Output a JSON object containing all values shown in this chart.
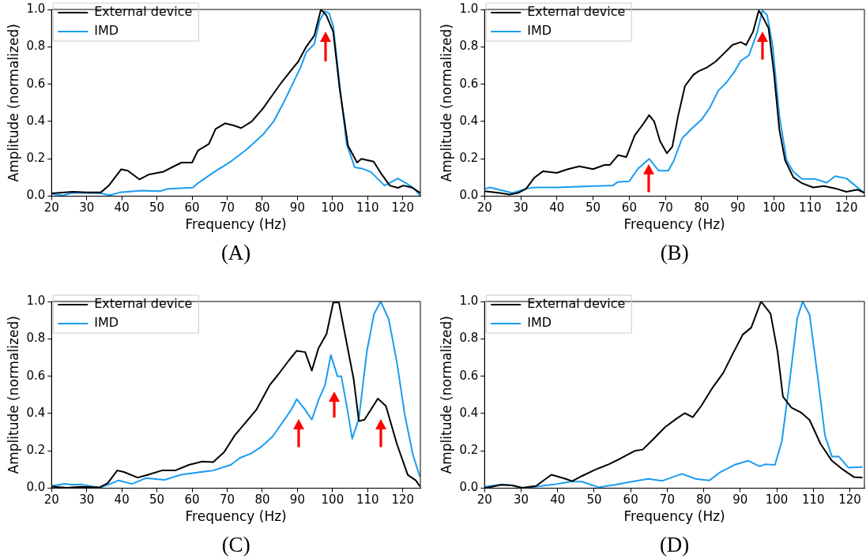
{
  "chart_data": [
    {
      "type": "line",
      "xlabel": "Frequency (Hz)",
      "ylabel": "Amplitude (normalized)",
      "annotations": [
        "(A)"
      ],
      "xlim": [
        20,
        125
      ],
      "ylim": [
        0,
        1
      ],
      "xticks": [
        20,
        30,
        40,
        50,
        60,
        70,
        80,
        90,
        100,
        110,
        120
      ],
      "yticks": [
        {
          "value": 0,
          "label": "0.0"
        },
        {
          "value": 0.2,
          "label": "0.2"
        },
        {
          "value": 0.4,
          "label": "0.4"
        },
        {
          "value": 0.6,
          "label": "0.6"
        },
        {
          "value": 0.8,
          "label": "0.8"
        },
        {
          "value": 1,
          "label": "1.0"
        }
      ],
      "grid": false,
      "legend": "top left",
      "marker": "none",
      "line_style": "solid",
      "series": [
        {
          "name": "External device",
          "color": "#000000",
          "x": [
            20,
            26,
            30,
            34,
            36.3,
            39.8,
            41.7,
            45,
            47.8,
            51.7,
            54.8,
            57,
            60,
            61.7,
            64.8,
            66.7,
            69.4,
            71.7,
            74,
            77,
            80.2,
            83.2,
            85.5,
            87.8,
            90.2,
            92.5,
            94.8,
            96.7,
            98.2,
            100.2,
            102,
            104.4,
            107,
            108.2,
            111.7,
            114,
            116.3,
            118.6,
            120.2,
            122.5,
            124.8
          ],
          "values": [
            0.015,
            0.024,
            0.02,
            0.02,
            0.057,
            0.144,
            0.137,
            0.09,
            0.117,
            0.13,
            0.16,
            0.18,
            0.18,
            0.245,
            0.28,
            0.36,
            0.39,
            0.38,
            0.365,
            0.4,
            0.47,
            0.55,
            0.61,
            0.665,
            0.72,
            0.8,
            0.86,
            1.0,
            0.97,
            0.88,
            0.58,
            0.27,
            0.18,
            0.2,
            0.185,
            0.117,
            0.057,
            0.045,
            0.057,
            0.047,
            0.02
          ]
        },
        {
          "name": "IMD",
          "color": "#1a9cf0",
          "x": [
            20,
            23.2,
            26,
            34,
            36.7,
            39.4,
            45.5,
            50.9,
            53.2,
            60.2,
            61.7,
            66.3,
            71,
            75.5,
            80.2,
            83.2,
            86.3,
            88.6,
            90.9,
            92.5,
            94.8,
            96.3,
            97.8,
            99,
            100.2,
            102,
            104,
            106.3,
            108.6,
            110.9,
            114.8,
            118.6,
            120.9,
            123.2,
            124.8
          ],
          "values": [
            0.012,
            0.005,
            0.018,
            0.015,
            0.006,
            0.02,
            0.03,
            0.027,
            0.04,
            0.046,
            0.07,
            0.13,
            0.185,
            0.25,
            0.33,
            0.4,
            0.51,
            0.6,
            0.69,
            0.77,
            0.815,
            0.94,
            0.99,
            0.98,
            0.91,
            0.6,
            0.28,
            0.155,
            0.147,
            0.13,
            0.057,
            0.095,
            0.07,
            0.042,
            0.005
          ]
        }
      ]
    },
    {
      "type": "line",
      "xlabel": "Frequency (Hz)",
      "ylabel": "Amplitude (normalized)",
      "annotations": [
        "(B)"
      ],
      "xlim": [
        20,
        125
      ],
      "ylim": [
        0,
        1
      ],
      "xticks": [
        20,
        30,
        40,
        50,
        60,
        70,
        80,
        90,
        100,
        110,
        120
      ],
      "yticks": [
        {
          "value": 0,
          "label": "0.0"
        },
        {
          "value": 0.2,
          "label": "0.2"
        },
        {
          "value": 0.4,
          "label": "0.4"
        },
        {
          "value": 0.6,
          "label": "0.6"
        },
        {
          "value": 0.8,
          "label": "0.8"
        },
        {
          "value": 1,
          "label": "1.0"
        }
      ],
      "grid": false,
      "legend": "top left",
      "marker": "none",
      "line_style": "solid",
      "series": [
        {
          "name": "External device",
          "color": "#000000",
          "x": [
            20,
            23.8,
            26.9,
            29.2,
            31.5,
            33.8,
            36.2,
            40,
            43.1,
            46.2,
            50,
            53.1,
            54.6,
            56.9,
            59.2,
            61.5,
            63.8,
            65.5,
            66.9,
            68.5,
            70.4,
            71.9,
            73.5,
            75.4,
            77.7,
            79.2,
            81.5,
            83.8,
            86.2,
            88.5,
            90.8,
            92.3,
            94.2,
            95.8,
            96.9,
            98.5,
            100,
            101.5,
            103.1,
            105.4,
            107.7,
            110.8,
            113.8,
            116.9,
            120,
            123.1,
            124.8
          ],
          "values": [
            0.027,
            0.018,
            0.009,
            0.017,
            0.04,
            0.1,
            0.134,
            0.125,
            0.145,
            0.16,
            0.145,
            0.167,
            0.167,
            0.22,
            0.21,
            0.325,
            0.385,
            0.434,
            0.4,
            0.295,
            0.23,
            0.265,
            0.43,
            0.59,
            0.65,
            0.67,
            0.69,
            0.72,
            0.765,
            0.81,
            0.825,
            0.81,
            0.88,
            0.995,
            0.96,
            0.9,
            0.657,
            0.355,
            0.19,
            0.1,
            0.07,
            0.047,
            0.054,
            0.042,
            0.024,
            0.035,
            0.02
          ]
        },
        {
          "name": "IMD",
          "color": "#1a9cf0",
          "x": [
            20,
            21.5,
            24.6,
            27.7,
            31.5,
            33.8,
            40,
            44.6,
            50,
            55.4,
            56.9,
            60,
            62.3,
            65.5,
            68.1,
            70.8,
            72.3,
            74.6,
            77.7,
            80,
            82.3,
            84.6,
            86.9,
            89.2,
            90.8,
            93.1,
            95.4,
            96.8,
            98.1,
            99.6,
            101.5,
            103.5,
            105.4,
            107.7,
            111.5,
            114.6,
            116.9,
            120,
            124.8
          ],
          "values": [
            0.039,
            0.047,
            0.032,
            0.017,
            0.04,
            0.047,
            0.047,
            0.05,
            0.054,
            0.057,
            0.077,
            0.08,
            0.145,
            0.2,
            0.137,
            0.137,
            0.19,
            0.31,
            0.37,
            0.41,
            0.475,
            0.565,
            0.61,
            0.67,
            0.725,
            0.755,
            0.88,
            0.995,
            0.97,
            0.81,
            0.43,
            0.19,
            0.13,
            0.092,
            0.092,
            0.072,
            0.107,
            0.096,
            0.02
          ]
        }
      ]
    },
    {
      "type": "line",
      "xlabel": "Frequency (Hz)",
      "ylabel": "Amplitude (normalized)",
      "annotations": [
        "(C)"
      ],
      "xlim": [
        20,
        125
      ],
      "ylim": [
        0,
        1
      ],
      "xticks": [
        20,
        30,
        40,
        50,
        60,
        70,
        80,
        90,
        100,
        110,
        120
      ],
      "yticks": [
        {
          "value": 0,
          "label": "0.0"
        },
        {
          "value": 0.2,
          "label": "0.2"
        },
        {
          "value": 0.4,
          "label": "0.4"
        },
        {
          "value": 0.6,
          "label": "0.6"
        },
        {
          "value": 0.8,
          "label": "0.8"
        },
        {
          "value": 1,
          "label": "1.0"
        }
      ],
      "grid": false,
      "legend": "top left",
      "marker": "none",
      "line_style": "solid",
      "series": [
        {
          "name": "External device",
          "color": "#000000",
          "x": [
            20,
            24.5,
            28.3,
            33.7,
            36,
            38.7,
            40.6,
            44.5,
            47.5,
            51.4,
            55.2,
            59.1,
            62.9,
            66,
            69.1,
            72.2,
            75.2,
            78.3,
            82.2,
            84.5,
            87.5,
            89.8,
            92.2,
            94.1,
            96,
            98.3,
            100.2,
            101.8,
            103.7,
            106,
            107.5,
            109.1,
            112.9,
            115.2,
            118.3,
            121.4,
            123.7,
            124.8
          ],
          "values": [
            0.009,
            0.003,
            0.008,
            0.005,
            0.027,
            0.095,
            0.087,
            0.057,
            0.072,
            0.095,
            0.095,
            0.125,
            0.143,
            0.14,
            0.193,
            0.284,
            0.351,
            0.42,
            0.555,
            0.608,
            0.683,
            0.736,
            0.729,
            0.63,
            0.75,
            0.827,
            0.995,
            0.995,
            0.81,
            0.585,
            0.36,
            0.367,
            0.48,
            0.44,
            0.238,
            0.072,
            0.042,
            0.012
          ]
        },
        {
          "name": "IMD",
          "color": "#1a9cf0",
          "x": [
            20,
            23.7,
            26,
            28.3,
            33.7,
            36,
            39.1,
            42.9,
            46.8,
            52.2,
            56.8,
            61.4,
            66,
            71,
            73.7,
            76.8,
            79.8,
            82.9,
            86,
            88.3,
            89.8,
            92.2,
            94.1,
            96,
            97.9,
            99.5,
            101.4,
            102.5,
            104.1,
            105.6,
            107.5,
            109.8,
            111.8,
            113.7,
            116,
            118.3,
            120.6,
            122.9,
            124.8
          ],
          "values": [
            0.012,
            0.024,
            0.018,
            0.021,
            0.003,
            0.018,
            0.042,
            0.023,
            0.054,
            0.045,
            0.072,
            0.084,
            0.095,
            0.125,
            0.163,
            0.186,
            0.223,
            0.276,
            0.359,
            0.422,
            0.477,
            0.42,
            0.367,
            0.472,
            0.555,
            0.713,
            0.6,
            0.6,
            0.434,
            0.265,
            0.374,
            0.736,
            0.932,
            1.0,
            0.905,
            0.676,
            0.39,
            0.178,
            0.065
          ]
        }
      ]
    },
    {
      "type": "line",
      "xlabel": "Frequency (Hz)",
      "ylabel": "Amplitude (normalized)",
      "annotations": [
        "(D)"
      ],
      "xlim": [
        20,
        124
      ],
      "ylim": [
        0,
        1
      ],
      "xticks": [
        20,
        30,
        40,
        50,
        60,
        70,
        80,
        90,
        100,
        110,
        120
      ],
      "yticks": [
        {
          "value": 0,
          "label": "0.0"
        },
        {
          "value": 0.2,
          "label": "0.2"
        },
        {
          "value": 0.4,
          "label": "0.4"
        },
        {
          "value": 0.6,
          "label": "0.6"
        },
        {
          "value": 0.8,
          "label": "0.8"
        },
        {
          "value": 1,
          "label": "1.0"
        }
      ],
      "grid": false,
      "legend": "top left",
      "marker": "none",
      "line_style": "solid",
      "series": [
        {
          "name": "External device",
          "color": "#000000",
          "x": [
            20,
            24.6,
            27.6,
            30.3,
            34.1,
            38.3,
            41.7,
            44,
            46.6,
            50.4,
            54.2,
            57.3,
            61.1,
            63.3,
            66.4,
            69.4,
            72.5,
            74.8,
            77,
            79.3,
            82.4,
            85.4,
            87.7,
            90.7,
            93,
            95.7,
            98.3,
            100.2,
            101.7,
            104,
            106.7,
            109,
            112,
            115.1,
            118.1,
            121.1,
            123.3
          ],
          "values": [
            0,
            0.018,
            0.015,
            0.003,
            0.012,
            0.072,
            0.053,
            0.038,
            0.065,
            0.1,
            0.13,
            0.16,
            0.2,
            0.207,
            0.267,
            0.327,
            0.372,
            0.402,
            0.38,
            0.44,
            0.538,
            0.619,
            0.71,
            0.823,
            0.86,
            1.0,
            0.935,
            0.733,
            0.49,
            0.432,
            0.405,
            0.365,
            0.237,
            0.147,
            0.1,
            0.06,
            0.057
          ]
        },
        {
          "name": "IMD",
          "color": "#1a9cf0",
          "x": [
            20,
            24.6,
            27.6,
            30.3,
            33.7,
            39,
            43.6,
            46.6,
            51.2,
            55.7,
            60.3,
            64.9,
            68.7,
            74,
            77.8,
            81.6,
            84.6,
            88.4,
            92.2,
            95.3,
            96.8,
            99.5,
            101.4,
            103.6,
            105.6,
            107.1,
            109,
            111.3,
            113.2,
            115.1,
            117,
            119.6,
            123.3
          ],
          "values": [
            0.008,
            0.02,
            0.015,
            0,
            0.008,
            0.02,
            0.035,
            0.035,
            0.005,
            0.018,
            0.035,
            0.05,
            0.04,
            0.077,
            0.05,
            0.042,
            0.087,
            0.125,
            0.147,
            0.117,
            0.128,
            0.125,
            0.252,
            0.583,
            0.91,
            1.0,
            0.928,
            0.583,
            0.282,
            0.17,
            0.17,
            0.11,
            0.114
          ]
        }
      ]
    }
  ]
}
